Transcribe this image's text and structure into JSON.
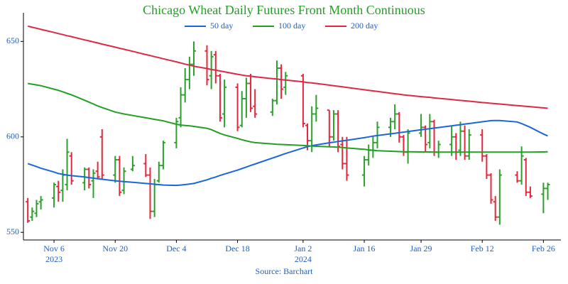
{
  "chart_data": {
    "type": "ohlc",
    "title": "Chicago Wheat Daily Futures Front Month Continuous",
    "source": "Source: Barchart",
    "legend": "top-center",
    "increasing_color": "#2ca02c",
    "decreasing_color": "#e3283c",
    "xlim": [
      "2023-10-30",
      "2024-03-01"
    ],
    "xticks": [
      {
        "value": "2023-11-06",
        "label": "Nov 6"
      },
      {
        "value": "2023-11-20",
        "label": "Nov 20"
      },
      {
        "value": "2023-12-04",
        "label": "Dec 4"
      },
      {
        "value": "2023-12-18",
        "label": "Dec 18"
      },
      {
        "value": "2024-01-02",
        "label": "Jan 2"
      },
      {
        "value": "2024-01-16",
        "label": "Jan 16"
      },
      {
        "value": "2024-01-29",
        "label": "Jan 29"
      },
      {
        "value": "2024-02-12",
        "label": "Feb 12"
      },
      {
        "value": "2024-02-26",
        "label": "Feb 26"
      }
    ],
    "year_labels": [
      {
        "value": "2023-11-06",
        "label": "2023"
      },
      {
        "value": "2024-01-02",
        "label": "2024"
      }
    ],
    "ylim": [
      546,
      665
    ],
    "yticks": [
      550,
      600,
      650
    ],
    "x": [
      "2023-10-31",
      "2023-11-01",
      "2023-11-02",
      "2023-11-03",
      "2023-11-06",
      "2023-11-07",
      "2023-11-08",
      "2023-11-09",
      "2023-11-10",
      "2023-11-13",
      "2023-11-14",
      "2023-11-15",
      "2023-11-16",
      "2023-11-17",
      "2023-11-20",
      "2023-11-21",
      "2023-11-22",
      "2023-11-24",
      "2023-11-27",
      "2023-11-28",
      "2023-11-29",
      "2023-11-30",
      "2023-12-01",
      "2023-12-04",
      "2023-12-05",
      "2023-12-06",
      "2023-12-07",
      "2023-12-08",
      "2023-12-11",
      "2023-12-12",
      "2023-12-13",
      "2023-12-14",
      "2023-12-15",
      "2023-12-18",
      "2023-12-19",
      "2023-12-20",
      "2023-12-21",
      "2023-12-22",
      "2023-12-26",
      "2023-12-27",
      "2023-12-28",
      "2023-12-29",
      "2024-01-02",
      "2024-01-03",
      "2024-01-04",
      "2024-01-05",
      "2024-01-08",
      "2024-01-09",
      "2024-01-10",
      "2024-01-11",
      "2024-01-12",
      "2024-01-16",
      "2024-01-17",
      "2024-01-18",
      "2024-01-19",
      "2024-01-22",
      "2024-01-23",
      "2024-01-24",
      "2024-01-25",
      "2024-01-26",
      "2024-01-29",
      "2024-01-30",
      "2024-01-31",
      "2024-02-01",
      "2024-02-02",
      "2024-02-05",
      "2024-02-06",
      "2024-02-07",
      "2024-02-08",
      "2024-02-09",
      "2024-02-12",
      "2024-02-13",
      "2024-02-14",
      "2024-02-15",
      "2024-02-16",
      "2024-02-20",
      "2024-02-21",
      "2024-02-22",
      "2024-02-23",
      "2024-02-26",
      "2024-02-27"
    ],
    "open": [
      566,
      558,
      560,
      566,
      568,
      574,
      572,
      575,
      590,
      576,
      583,
      577,
      582,
      600,
      580,
      588,
      572,
      583,
      586,
      580,
      561,
      577,
      585,
      597,
      610,
      622,
      630,
      638,
      645,
      632,
      643,
      632,
      612,
      626,
      606,
      620,
      628,
      616,
      613,
      619,
      636,
      626,
      632,
      606,
      598,
      612,
      614,
      600,
      612,
      596,
      586,
      580,
      588,
      593,
      597,
      605,
      608,
      612,
      600,
      592,
      602,
      605,
      597,
      608,
      592,
      596,
      600,
      593,
      603,
      590,
      601,
      590,
      580,
      566,
      558,
      580,
      577,
      588,
      571,
      570,
      573
    ],
    "high": [
      568,
      563,
      567,
      569,
      576,
      577,
      583,
      599,
      592,
      584,
      584,
      583,
      587,
      604,
      590,
      590,
      584,
      590,
      591,
      584,
      578,
      587,
      598,
      610,
      626,
      636,
      642,
      650,
      648,
      645,
      645,
      633,
      630,
      628,
      624,
      631,
      633,
      625,
      620,
      640,
      638,
      634,
      633,
      607,
      616,
      622,
      614,
      614,
      614,
      600,
      600,
      590,
      596,
      600,
      608,
      610,
      617,
      613,
      601,
      604,
      612,
      606,
      612,
      609,
      598,
      606,
      602,
      608,
      606,
      604,
      604,
      591,
      581,
      569,
      583,
      582,
      595,
      589,
      574,
      576,
      576
    ],
    "low": [
      555,
      556,
      558,
      562,
      563,
      566,
      566,
      572,
      575,
      572,
      573,
      568,
      578,
      578,
      576,
      569,
      570,
      582,
      579,
      557,
      558,
      576,
      583,
      594,
      605,
      618,
      625,
      632,
      627,
      625,
      628,
      608,
      605,
      603,
      605,
      610,
      613,
      610,
      611,
      617,
      620,
      622,
      605,
      593,
      592,
      608,
      595,
      598,
      592,
      583,
      577,
      574,
      585,
      589,
      594,
      600,
      604,
      597,
      590,
      586,
      600,
      592,
      594,
      590,
      589,
      590,
      588,
      590,
      588,
      588,
      587,
      578,
      565,
      556,
      554,
      576,
      575,
      569,
      568,
      560,
      567
    ],
    "close": [
      556,
      561,
      565,
      567,
      575,
      571,
      580,
      592,
      577,
      583,
      575,
      581,
      579,
      580,
      588,
      571,
      582,
      585,
      580,
      561,
      575,
      585,
      597,
      608,
      622,
      630,
      638,
      645,
      630,
      642,
      632,
      610,
      626,
      605,
      620,
      628,
      615,
      612,
      619,
      636,
      625,
      632,
      607,
      598,
      612,
      615,
      600,
      612,
      595,
      586,
      580,
      588,
      593,
      597,
      605,
      608,
      612,
      600,
      592,
      602,
      605,
      596,
      608,
      592,
      596,
      600,
      592,
      603,
      590,
      601,
      590,
      580,
      567,
      558,
      580,
      577,
      590,
      571,
      569,
      573,
      575
    ],
    "series": [
      {
        "name": "50 day",
        "color": "#1a66dd",
        "values": [
          586,
          585.2,
          584.4,
          583.6,
          581.6,
          580.8,
          580.4,
          580.0,
          579.7,
          579.0,
          578.7,
          578.4,
          578.1,
          577.8,
          577.0,
          576.8,
          576.6,
          576.2,
          575.6,
          575.4,
          575.2,
          575.0,
          574.8,
          574.6,
          574.8,
          575.0,
          575.3,
          575.6,
          577.5,
          578.3,
          579.0,
          579.8,
          580.5,
          582.6,
          583.4,
          584.2,
          585.0,
          585.8,
          588.9,
          589.7,
          590.5,
          591.3,
          594.2,
          594.9,
          595.4,
          595.8,
          596.9,
          597.2,
          597.6,
          597.9,
          598.2,
          599.6,
          600.0,
          600.4,
          600.7,
          601.6,
          601.9,
          602.2,
          602.5,
          602.8,
          603.7,
          604.0,
          604.3,
          604.6,
          604.9,
          605.8,
          606.1,
          606.4,
          606.7,
          607.0,
          607.9,
          608.2,
          608.5,
          608.6,
          608.6,
          607.8,
          607.0,
          606.0,
          605.0,
          601.5,
          600.5
        ]
      },
      {
        "name": "100 day",
        "color": "#22a022",
        "values": [
          628.0,
          627.6,
          627.2,
          626.8,
          625.0,
          624.4,
          623.6,
          622.8,
          622.0,
          619.2,
          618.2,
          617.2,
          616.2,
          615.4,
          613.0,
          612.5,
          612.0,
          611.2,
          610.0,
          609.6,
          609.2,
          608.8,
          608.4,
          606.6,
          606.2,
          606.0,
          605.8,
          605.5,
          604.5,
          603.8,
          602.8,
          601.8,
          601.0,
          599.2,
          598.5,
          597.9,
          597.4,
          597.0,
          596.3,
          596.1,
          596.0,
          595.9,
          595.5,
          595.4,
          595.2,
          595.1,
          594.8,
          594.7,
          594.6,
          594.4,
          594.2,
          593.5,
          593.2,
          593.0,
          592.8,
          592.5,
          592.4,
          592.3,
          592.2,
          592.2,
          592.1,
          592.1,
          592.1,
          592.0,
          592.0,
          592.0,
          592.0,
          592.0,
          592.0,
          592.0,
          592.0,
          592.0,
          592.0,
          592.0,
          592.0,
          592.0,
          592.0,
          592.0,
          592.0,
          592.1,
          592.2
        ]
      },
      {
        "name": "200 day",
        "color": "#dc2a46",
        "values": [
          658,
          657.4,
          656.9,
          656.3,
          654.7,
          654.1,
          653.6,
          653.0,
          652.5,
          650.8,
          650.3,
          649.7,
          649.2,
          648.6,
          647.0,
          646.4,
          645.9,
          644.8,
          643.1,
          642.6,
          642.0,
          641.5,
          640.9,
          639.3,
          638.7,
          638.1,
          637.6,
          637.0,
          635.8,
          635.3,
          634.9,
          634.5,
          634.1,
          632.8,
          632.4,
          632.0,
          631.8,
          631.5,
          630.5,
          630.3,
          630.0,
          629.8,
          628.8,
          628.5,
          628.3,
          628.0,
          627.1,
          626.8,
          626.5,
          626.2,
          625.9,
          624.7,
          624.4,
          624.1,
          623.8,
          622.9,
          622.6,
          622.3,
          622.0,
          621.8,
          621.1,
          620.9,
          620.7,
          620.4,
          620.2,
          619.6,
          619.3,
          619.1,
          618.9,
          618.7,
          618.0,
          617.8,
          617.6,
          617.4,
          617.2,
          616.4,
          616.2,
          616.0,
          615.8,
          615.2,
          615.0
        ]
      }
    ]
  }
}
